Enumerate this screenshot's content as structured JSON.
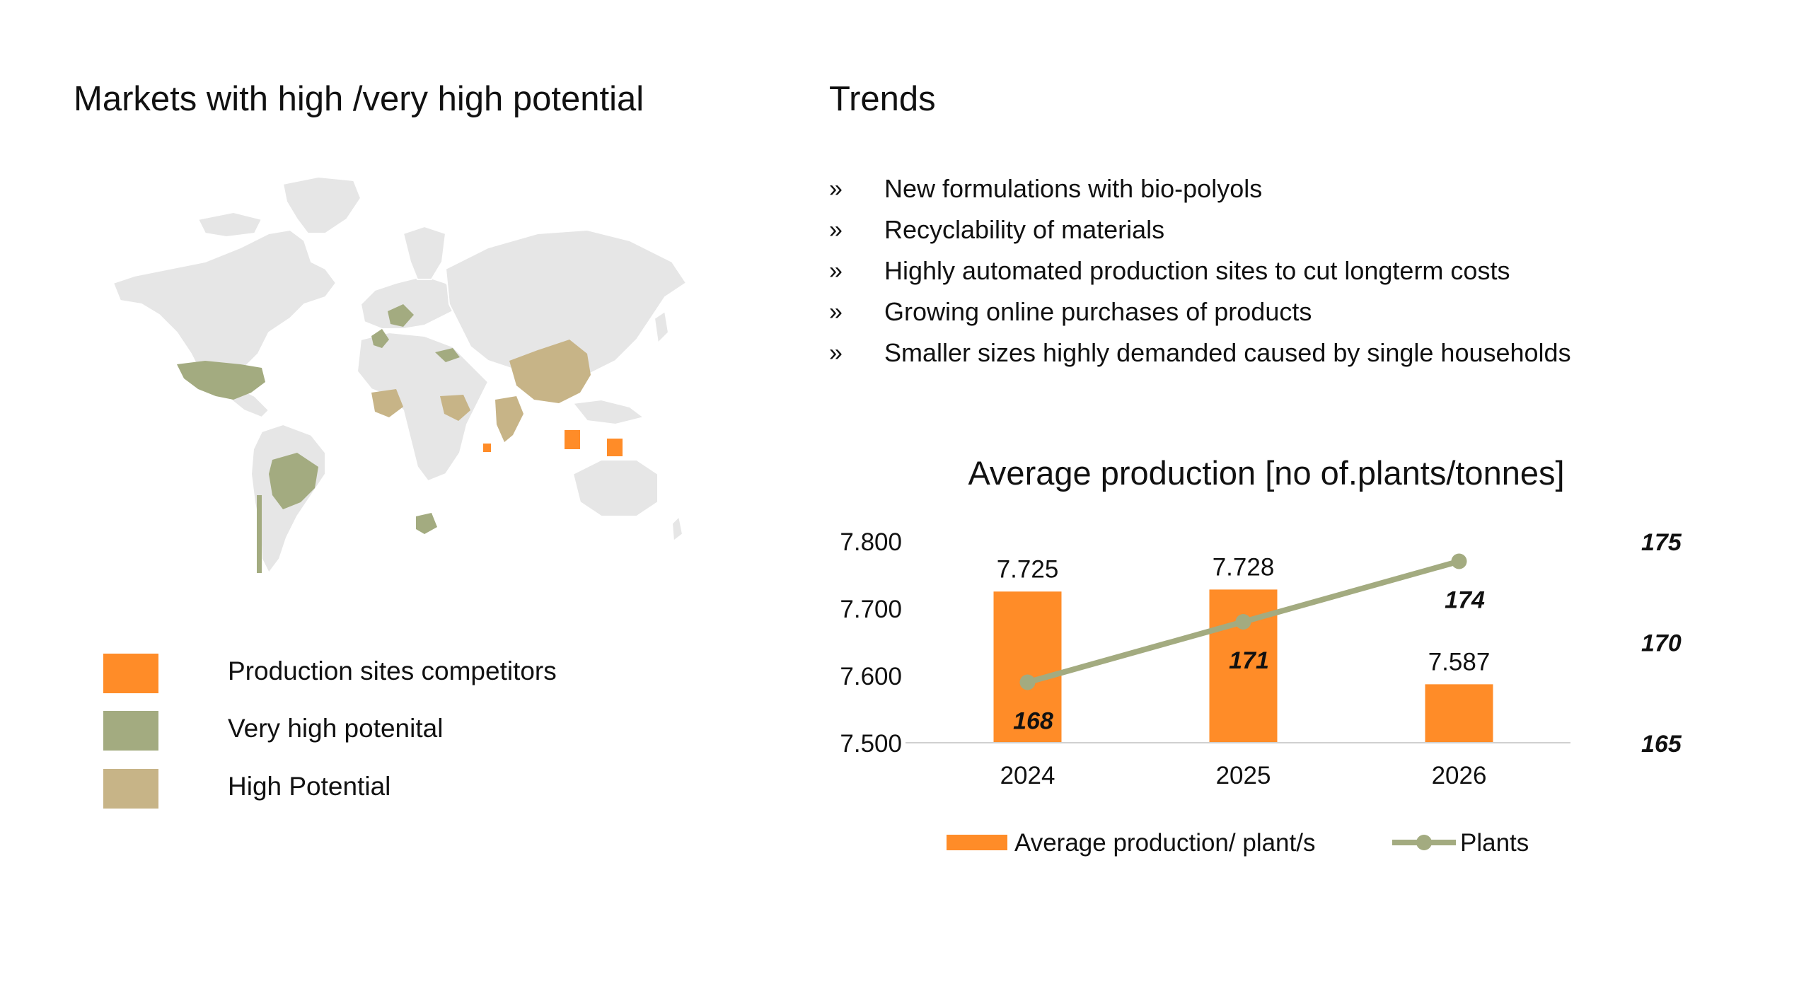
{
  "map_section": {
    "title": "Markets with high /very high potential",
    "legend": [
      {
        "label": "Production sites competitors",
        "color": "#ff8c28"
      },
      {
        "label": "Very high potenital",
        "color": "#a3ab80"
      },
      {
        "label": "High Potential",
        "color": "#c7b487"
      }
    ],
    "base_color": "#e6e6e6"
  },
  "trends": {
    "title": "Trends",
    "bullet": "»",
    "items": [
      "New formulations with bio-polyols",
      "Recyclability of materials",
      "Highly automated production sites to cut longterm costs",
      "Growing online purchases of products",
      "Smaller sizes highly demanded caused by single households"
    ]
  },
  "chart_data": {
    "type": "bar",
    "title": "Average production [no of.plants/tonnes]",
    "categories": [
      "2024",
      "2025",
      "2026"
    ],
    "series": [
      {
        "name": "Average production/ plant/s",
        "type": "bar",
        "axis": "left",
        "color": "#ff8c28",
        "values": [
          7725,
          7728,
          7587
        ],
        "labels": [
          "7.725",
          "7.728",
          "7.587"
        ]
      },
      {
        "name": "Plants",
        "type": "line",
        "axis": "right",
        "color": "#a3ab80",
        "values": [
          168,
          171,
          174
        ],
        "labels": [
          "168",
          "171",
          "174"
        ]
      }
    ],
    "y_left": {
      "range": [
        7500,
        7800
      ],
      "ticks": [
        7500,
        7600,
        7700,
        7800
      ],
      "tick_labels": [
        "7.500",
        "7.600",
        "7.700",
        "7.800"
      ]
    },
    "y_right": {
      "range": [
        165,
        175
      ],
      "ticks": [
        165,
        170,
        175
      ],
      "tick_labels": [
        "165",
        "170",
        "175"
      ]
    },
    "grid": false,
    "legend_position": "bottom"
  }
}
